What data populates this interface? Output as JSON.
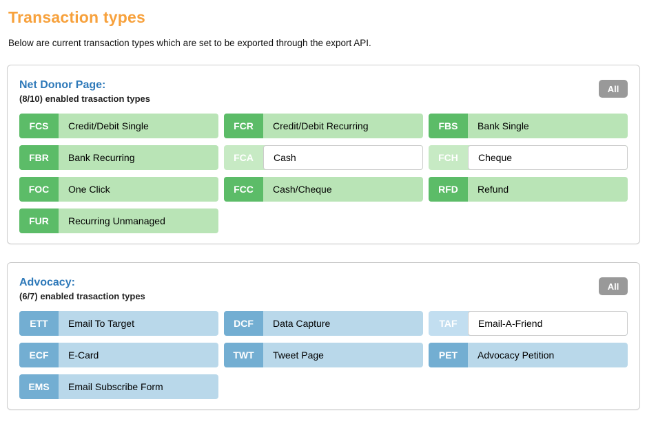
{
  "page": {
    "title": "Transaction types",
    "subtitle": "Below are current transaction types which are set to be exported through the export API."
  },
  "colors": {
    "accent_orange": "#f7a13c",
    "heading_blue": "#2e79b9",
    "green_badge": "#5cbc68",
    "green_body": "#b9e4b6",
    "green_disabled_badge": "#c7eac4",
    "blue_badge": "#73aed2",
    "blue_body": "#b9d8ea",
    "blue_disabled_badge": "#c2def0",
    "all_button_gray": "#999999"
  },
  "sections": [
    {
      "name": "Net Donor Page:",
      "summary": "(8/10) enabled trasaction types",
      "all_button_label": "All",
      "theme": "green",
      "tiles": [
        {
          "code": "FCS",
          "label": "Credit/Debit Single",
          "enabled": true
        },
        {
          "code": "FCR",
          "label": "Credit/Debit Recurring",
          "enabled": true
        },
        {
          "code": "FBS",
          "label": "Bank Single",
          "enabled": true
        },
        {
          "code": "FBR",
          "label": "Bank Recurring",
          "enabled": true
        },
        {
          "code": "FCA",
          "label": "Cash",
          "enabled": false
        },
        {
          "code": "FCH",
          "label": "Cheque",
          "enabled": false
        },
        {
          "code": "FOC",
          "label": "One Click",
          "enabled": true
        },
        {
          "code": "FCC",
          "label": "Cash/Cheque",
          "enabled": true
        },
        {
          "code": "RFD",
          "label": "Refund",
          "enabled": true
        },
        {
          "code": "FUR",
          "label": "Recurring Unmanaged",
          "enabled": true
        }
      ]
    },
    {
      "name": "Advocacy:",
      "summary": "(6/7) enabled trasaction types",
      "all_button_label": "All",
      "theme": "blue",
      "tiles": [
        {
          "code": "ETT",
          "label": "Email To Target",
          "enabled": true
        },
        {
          "code": "DCF",
          "label": "Data Capture",
          "enabled": true
        },
        {
          "code": "TAF",
          "label": "Email-A-Friend",
          "enabled": false
        },
        {
          "code": "ECF",
          "label": "E-Card",
          "enabled": true
        },
        {
          "code": "TWT",
          "label": "Tweet Page",
          "enabled": true
        },
        {
          "code": "PET",
          "label": "Advocacy Petition",
          "enabled": true
        },
        {
          "code": "EMS",
          "label": "Email Subscribe Form",
          "enabled": true
        }
      ]
    }
  ]
}
